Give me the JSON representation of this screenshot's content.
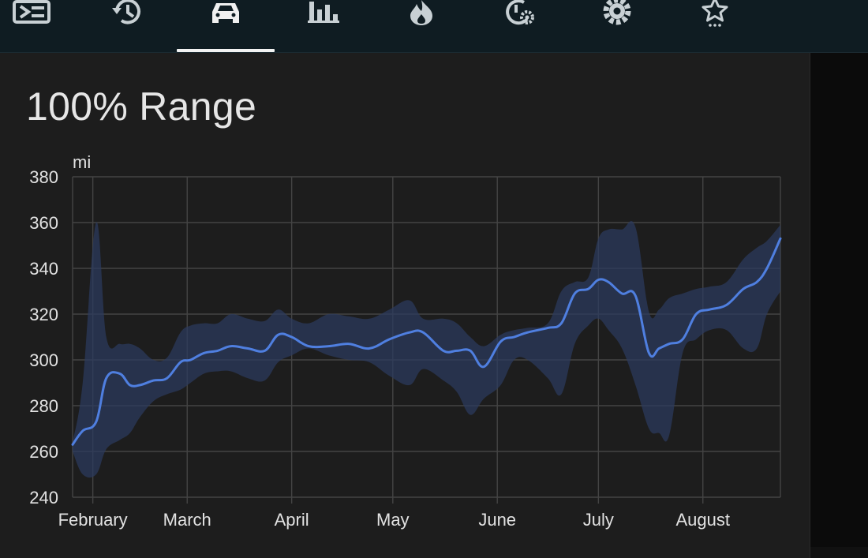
{
  "nav": {
    "tabs": [
      {
        "icon": "log-list-icon",
        "active": false
      },
      {
        "icon": "history-icon",
        "active": false
      },
      {
        "icon": "car-icon",
        "active": true
      },
      {
        "icon": "bar-chart-icon",
        "active": false
      },
      {
        "icon": "flame-icon",
        "active": false
      },
      {
        "icon": "timer-settings-icon",
        "active": false
      },
      {
        "icon": "gear-icon",
        "active": false
      },
      {
        "icon": "star-more-icon",
        "active": false
      }
    ]
  },
  "card": {
    "title": "100% Range"
  },
  "colors": {
    "line": "#4f7fe0",
    "band": "#2b3a5e",
    "grid": "#444444",
    "background": "#1d1d1d"
  },
  "chart_data": {
    "type": "line",
    "title": "100% Range",
    "ylabel": "mi",
    "xlabel": "",
    "ylim": [
      240,
      380
    ],
    "yticks": [
      240,
      260,
      280,
      300,
      320,
      340,
      360,
      380
    ],
    "xlim": [
      "2023-01-26",
      "2023-08-24"
    ],
    "xticks": [
      {
        "date": "2023-02-01",
        "label": "February"
      },
      {
        "date": "2023-03-01",
        "label": "March"
      },
      {
        "date": "2023-04-01",
        "label": "April"
      },
      {
        "date": "2023-05-01",
        "label": "May"
      },
      {
        "date": "2023-06-01",
        "label": "June"
      },
      {
        "date": "2023-07-01",
        "label": "July"
      },
      {
        "date": "2023-08-01",
        "label": "August"
      }
    ],
    "grid": true,
    "series": [
      {
        "x": [
          "2023-01-26",
          "2023-01-29",
          "2023-02-02",
          "2023-02-05",
          "2023-02-09",
          "2023-02-12",
          "2023-02-15",
          "2023-02-19",
          "2023-02-23",
          "2023-02-27",
          "2023-03-02",
          "2023-03-06",
          "2023-03-10",
          "2023-03-14",
          "2023-03-19",
          "2023-03-24",
          "2023-03-28",
          "2023-04-01",
          "2023-04-06",
          "2023-04-12",
          "2023-04-18",
          "2023-04-24",
          "2023-04-30",
          "2023-05-06",
          "2023-05-10",
          "2023-05-16",
          "2023-05-20",
          "2023-05-24",
          "2023-05-28",
          "2023-06-02",
          "2023-06-06",
          "2023-06-10",
          "2023-06-16",
          "2023-06-20",
          "2023-06-24",
          "2023-06-28",
          "2023-07-01",
          "2023-07-04",
          "2023-07-08",
          "2023-07-12",
          "2023-07-16",
          "2023-07-19",
          "2023-07-22",
          "2023-07-26",
          "2023-07-30",
          "2023-08-03",
          "2023-08-08",
          "2023-08-13",
          "2023-08-17",
          "2023-08-20",
          "2023-08-24"
        ],
        "values": [
          263,
          269,
          273,
          292,
          294,
          289,
          289,
          291,
          292,
          299,
          300,
          303,
          304,
          306,
          305,
          304,
          311,
          310,
          306,
          306,
          307,
          305,
          309,
          312,
          312,
          304,
          304,
          304,
          297,
          308,
          310,
          312,
          314,
          316,
          329,
          331,
          335,
          334,
          329,
          328,
          303,
          305,
          307,
          309,
          320,
          322,
          324,
          331,
          334,
          340,
          353
        ],
        "low": [
          260,
          250,
          250,
          261,
          265,
          268,
          275,
          282,
          285,
          287,
          290,
          294,
          295,
          295,
          292,
          291,
          299,
          302,
          305,
          302,
          300,
          299,
          293,
          289,
          296,
          291,
          286,
          276,
          283,
          289,
          300,
          300,
          292,
          285,
          307,
          315,
          318,
          313,
          305,
          289,
          270,
          268,
          267,
          303,
          309,
          313,
          313,
          305,
          305,
          320,
          330
        ],
        "high": [
          264,
          290,
          360,
          310,
          307,
          307,
          305,
          300,
          301,
          312,
          315,
          316,
          316,
          320,
          318,
          317,
          322,
          318,
          316,
          320,
          319,
          318,
          322,
          326,
          318,
          318,
          316,
          310,
          306,
          311,
          313,
          314,
          316,
          330,
          334,
          336,
          353,
          357,
          357,
          358,
          321,
          322,
          327,
          329,
          331,
          332,
          334,
          344,
          349,
          352,
          359
        ]
      }
    ]
  }
}
